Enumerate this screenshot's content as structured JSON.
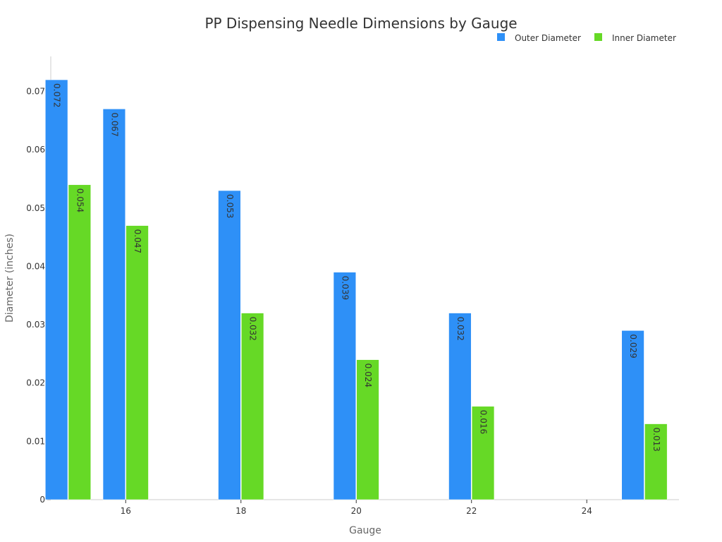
{
  "chart_data": {
    "type": "bar",
    "title": "PP Dispensing Needle Dimensions by Gauge",
    "xlabel": "Gauge",
    "ylabel": "Diameter (inches)",
    "x_scale": "linear",
    "xlim": [
      14.7,
      25.6
    ],
    "x_ticks": [
      16,
      18,
      20,
      22,
      24
    ],
    "ylim": [
      0,
      0.076
    ],
    "y_ticks": [
      0,
      0.01,
      0.02,
      0.03,
      0.04,
      0.05,
      0.06,
      0.07
    ],
    "y_tick_labels": [
      "0",
      "0.01",
      "0.02",
      "0.03",
      "0.04",
      "0.05",
      "0.06",
      "0.07"
    ],
    "grid": false,
    "legend_position": "top-right",
    "x": [
      15,
      16,
      18,
      20,
      22,
      25
    ],
    "series": [
      {
        "name": "Outer Diameter",
        "color": "#2E90F7",
        "values": [
          0.072,
          0.067,
          0.053,
          0.039,
          0.032,
          0.029
        ],
        "labels": [
          "0.072",
          "0.067",
          "0.053",
          "0.039",
          "0.032",
          "0.029"
        ]
      },
      {
        "name": "Inner Diameter",
        "color": "#66D926",
        "values": [
          0.054,
          0.047,
          0.032,
          0.024,
          0.016,
          0.013
        ],
        "labels": [
          "0.054",
          "0.047",
          "0.032",
          "0.024",
          "0.016",
          "0.013"
        ]
      }
    ]
  }
}
